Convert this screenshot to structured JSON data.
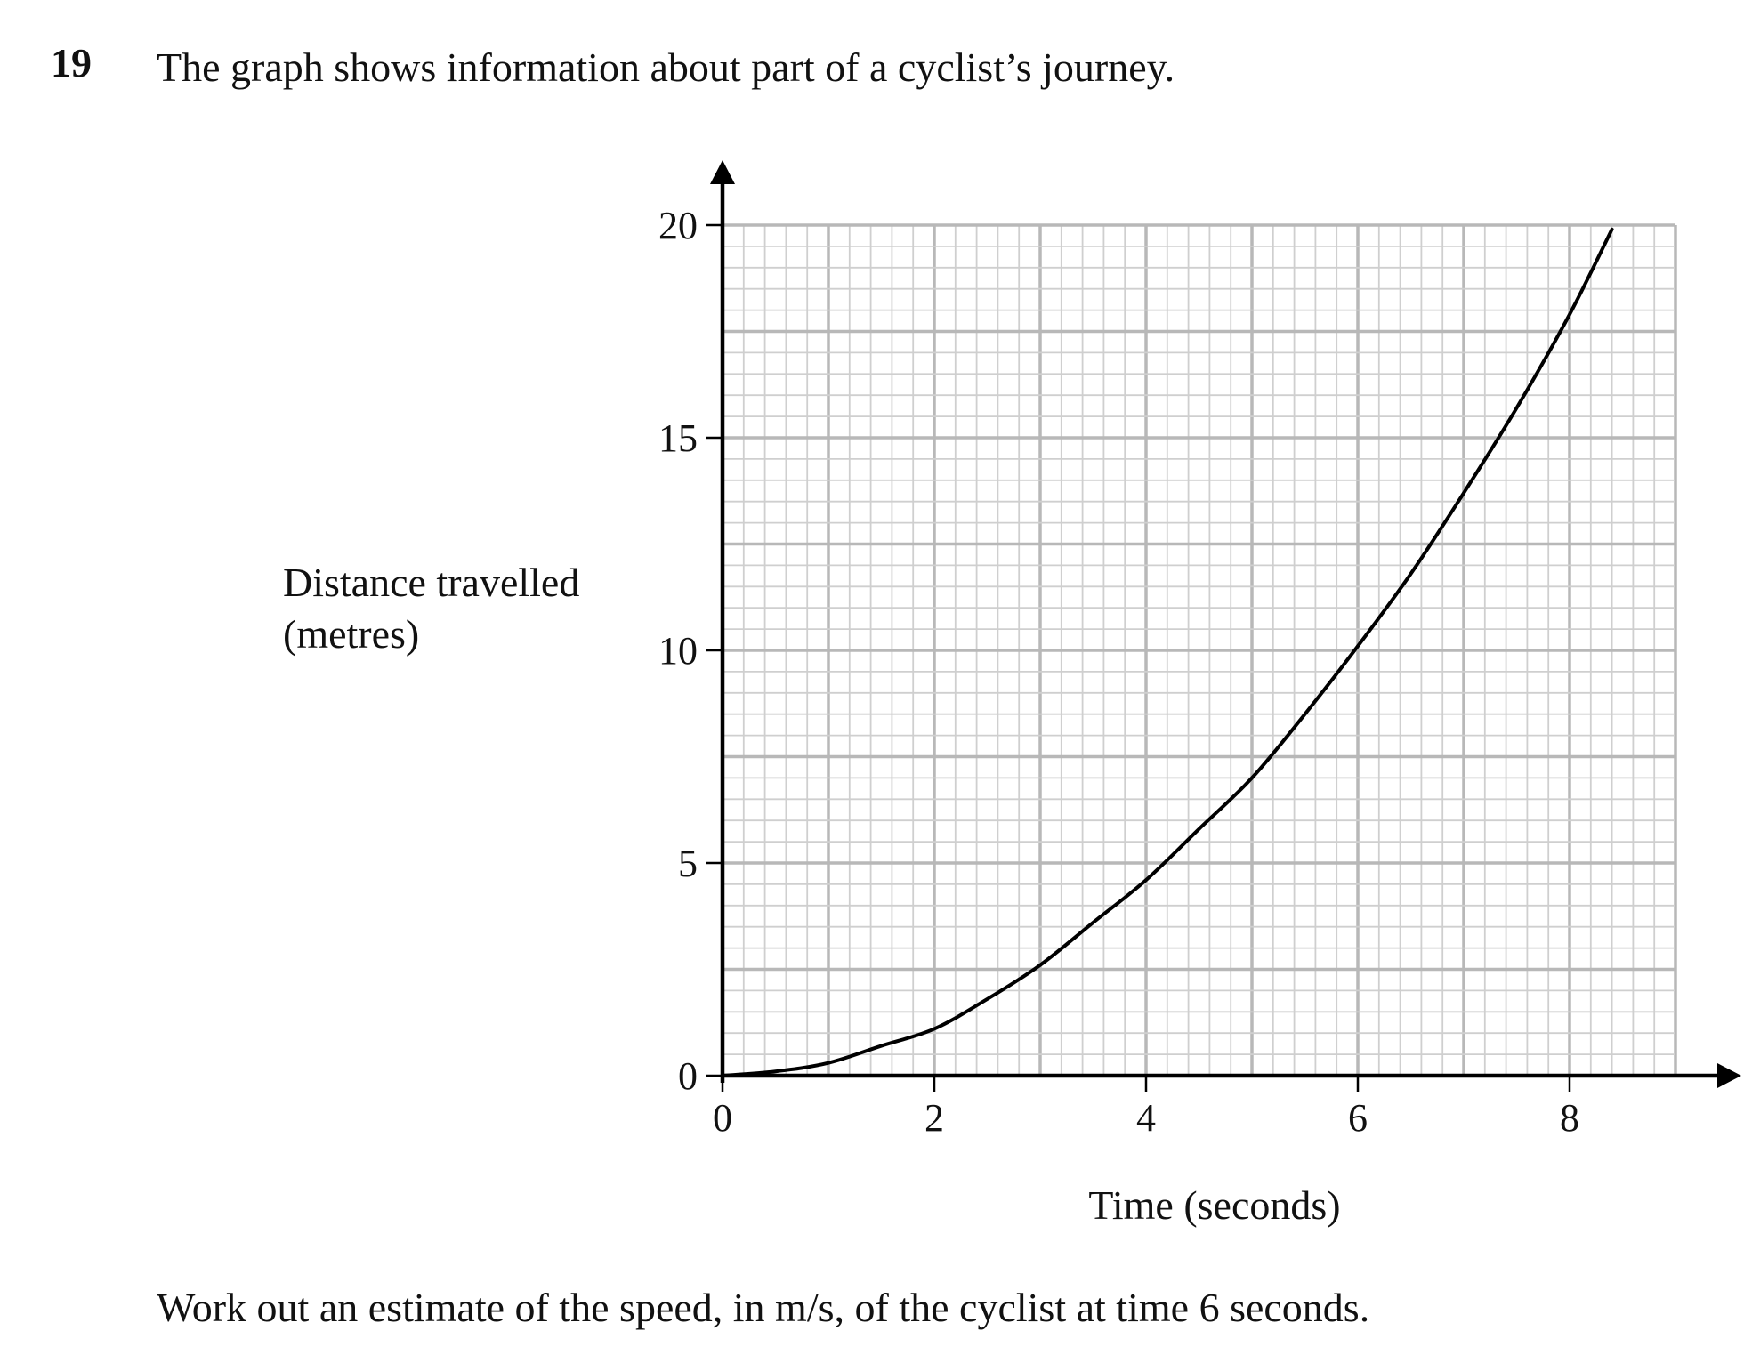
{
  "question": {
    "number": "19",
    "intro": "The graph shows information about part of a cyclist’s journey.",
    "task": "Work out an estimate of the speed, in m/s, of the cyclist at time 6 seconds."
  },
  "chart_data": {
    "type": "line",
    "title": "",
    "xlabel": "Time (seconds)",
    "ylabel": "Distance travelled (metres)",
    "ylabel_lines": [
      "Distance travelled",
      "(metres)"
    ],
    "xlim": [
      0,
      9
    ],
    "ylim": [
      0,
      20
    ],
    "x_ticks": [
      0,
      2,
      4,
      6,
      8
    ],
    "y_ticks": [
      0,
      5,
      10,
      15,
      20
    ],
    "grid": true,
    "grid_minor_step_x": 0.2,
    "grid_minor_step_y": 0.5,
    "grid_major_step_x": 1,
    "grid_major_step_y": 2.5,
    "series": [
      {
        "color": "#000000",
        "x": [
          0,
          0.5,
          1,
          1.5,
          2,
          2.5,
          3,
          3.5,
          4,
          4.5,
          5,
          5.5,
          6,
          6.5,
          7,
          7.5,
          8,
          8.4
        ],
        "y": [
          0,
          0.1,
          0.3,
          0.7,
          1.1,
          1.8,
          2.6,
          3.6,
          4.6,
          5.8,
          7.0,
          8.5,
          10.1,
          11.8,
          13.7,
          15.7,
          17.9,
          19.9
        ]
      }
    ],
    "colors": {
      "axis": "#000000",
      "grid_minor": "#cfcfcf",
      "grid_major": "#b8b8b8"
    }
  }
}
